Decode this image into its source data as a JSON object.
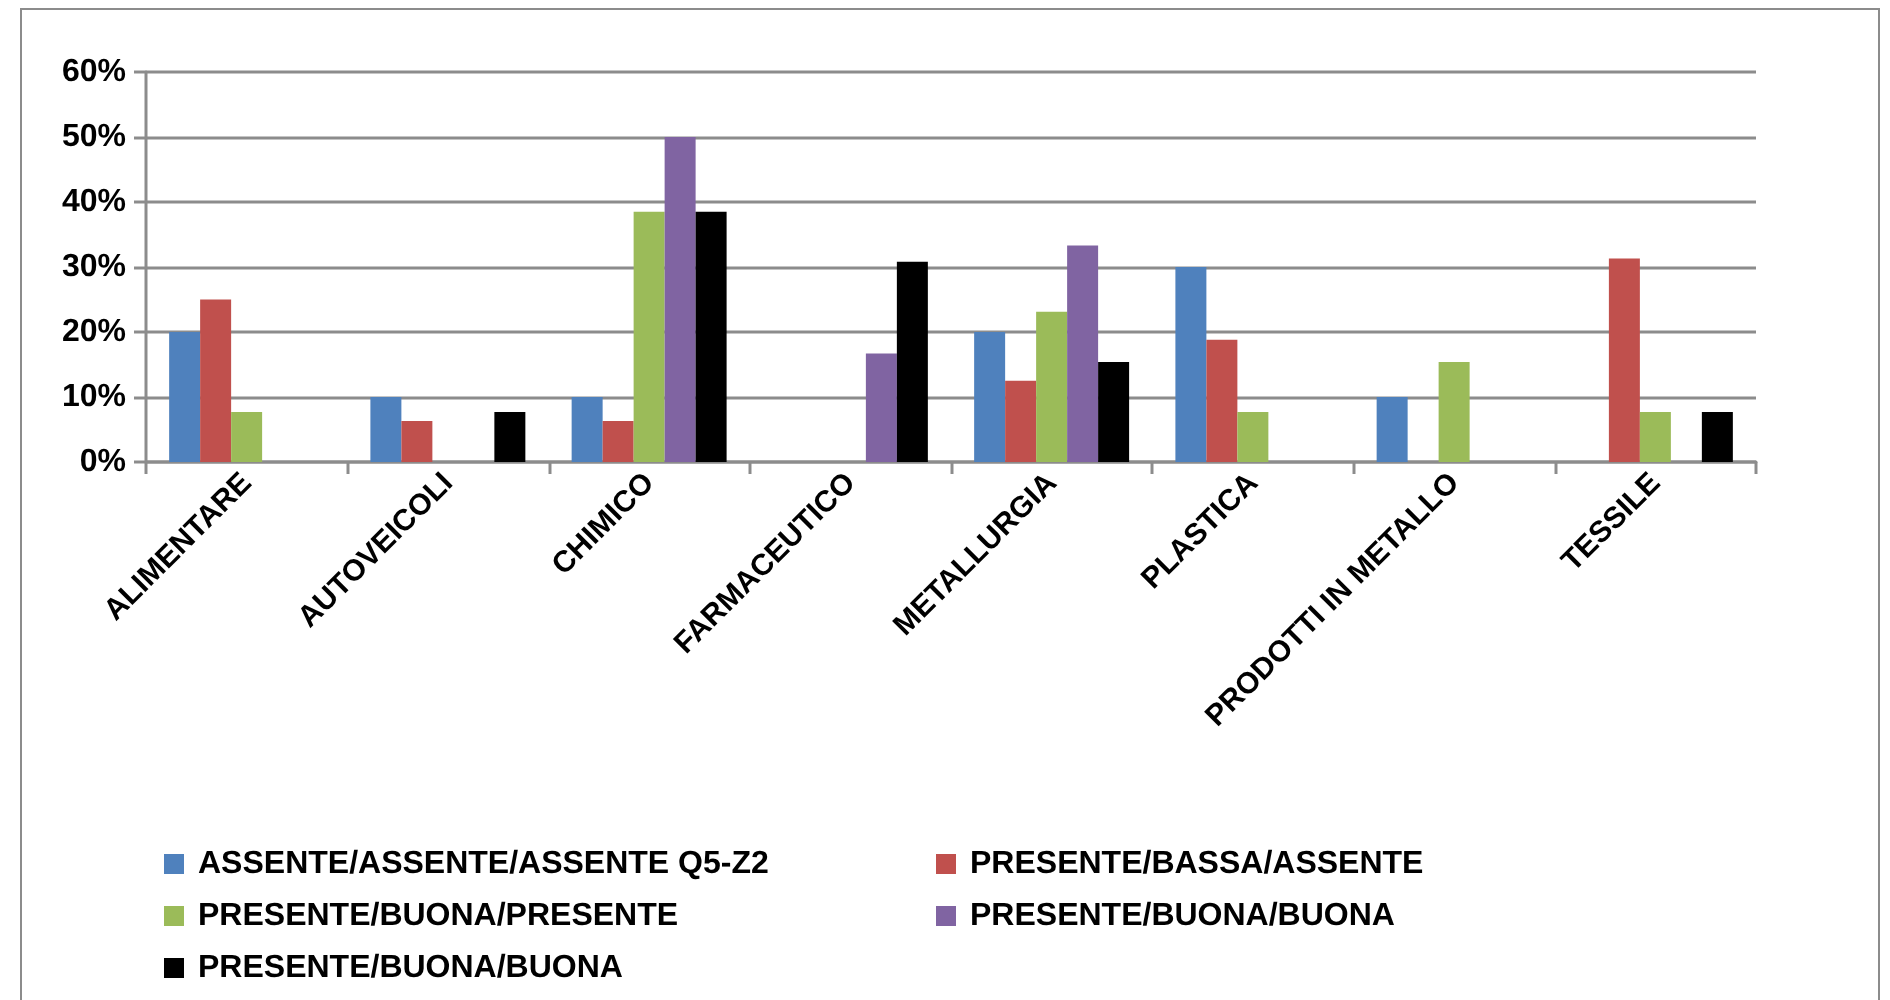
{
  "chart_data": {
    "type": "bar",
    "categories": [
      "ALIMENTARE",
      "AUTOVEICOLI",
      "CHIMICO",
      "FARMACEUTICO",
      "METALLURGIA",
      "PLASTICA",
      "PRODOTTI IN METALLO",
      "TESSILE"
    ],
    "series": [
      {
        "name": "ASSENTE/ASSENTE/ASSENTE Q5-Z2",
        "color": "#4f81bd",
        "values": [
          20,
          10,
          10,
          null,
          20,
          30,
          10,
          null
        ]
      },
      {
        "name": "PRESENTE/BASSA/ASSENTE",
        "color": "#c0504d",
        "values": [
          25,
          6.3,
          6.3,
          null,
          12.5,
          18.8,
          null,
          31.3
        ]
      },
      {
        "name": "PRESENTE/BUONA/PRESENTE",
        "color": "#9bbb59",
        "values": [
          7.7,
          null,
          38.5,
          null,
          23.1,
          7.7,
          15.4,
          7.7
        ]
      },
      {
        "name": "PRESENTE/BUONA/BUONA",
        "color": "#8064a2",
        "values": [
          null,
          null,
          50,
          16.7,
          33.3,
          null,
          null,
          null
        ]
      },
      {
        "name": "PRESENTE/BUONA/BUONA",
        "color": "#000000",
        "values": [
          null,
          7.7,
          38.5,
          30.8,
          15.4,
          null,
          null,
          7.7
        ]
      }
    ],
    "ylim": [
      0,
      60
    ],
    "yticks": [
      {
        "value": 0,
        "label": "0%"
      },
      {
        "value": 10,
        "label": "10%"
      },
      {
        "value": 20,
        "label": "20%"
      },
      {
        "value": 30,
        "label": "30%"
      },
      {
        "value": 40,
        "label": "40%"
      },
      {
        "value": 50,
        "label": "50%"
      },
      {
        "value": 60,
        "label": "60%"
      }
    ],
    "grid": "y",
    "legend": "bottom"
  }
}
